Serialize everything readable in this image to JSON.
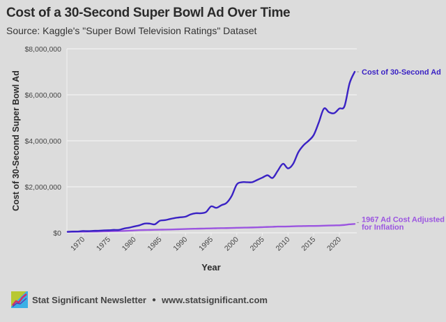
{
  "header": {
    "title": "Cost of a 30-Second Super Bowl Ad Over Time",
    "subtitle": "Source: Kaggle's \"Super Bowl Television Ratings\" Dataset"
  },
  "footer": {
    "brand": "Stat Significant Newsletter",
    "separator": "●",
    "url": "www.statsignificant.com"
  },
  "colors": {
    "background": "#dcdcdc",
    "cost_line": "#3a22c4",
    "inflation_line": "#9b55e0",
    "grid": "#f2f2f2"
  },
  "chart_data": {
    "type": "line",
    "title": "Cost of a 30-Second Super Bowl Ad Over Time",
    "xlabel": "Year",
    "ylabel": "Cost of 30-Second Super Bowl Ad",
    "xlim": [
      1967,
      2023
    ],
    "ylim": [
      0,
      8000000
    ],
    "x_ticks": [
      1970,
      1975,
      1980,
      1985,
      1990,
      1995,
      2000,
      2005,
      2010,
      2015,
      2020
    ],
    "y_ticks": [
      0,
      2000000,
      4000000,
      6000000,
      8000000
    ],
    "y_tick_labels": [
      "$0",
      "$2,000,000",
      "$4,000,000",
      "$6,000,000",
      "$8,000,000"
    ],
    "grid": "horizontal",
    "legend": "direct-labels-right",
    "x": [
      1967,
      1968,
      1969,
      1970,
      1971,
      1972,
      1973,
      1974,
      1975,
      1976,
      1977,
      1978,
      1979,
      1980,
      1981,
      1982,
      1983,
      1984,
      1985,
      1986,
      1987,
      1988,
      1989,
      1990,
      1991,
      1992,
      1993,
      1994,
      1995,
      1996,
      1997,
      1998,
      1999,
      2000,
      2001,
      2002,
      2003,
      2004,
      2005,
      2006,
      2007,
      2008,
      2009,
      2010,
      2011,
      2012,
      2013,
      2014,
      2015,
      2016,
      2017,
      2018,
      2019,
      2020,
      2021,
      2022,
      2023
    ],
    "series": [
      {
        "name": "Cost of 30-Second Ad",
        "label": "Cost of 30-Second Ad",
        "values": [
          42000,
          54000,
          55000,
          78000,
          72000,
          86000,
          88000,
          103000,
          110000,
          125000,
          125000,
          185000,
          222000,
          275000,
          324000,
          400000,
          400000,
          368000,
          525000,
          550000,
          600000,
          645000,
          675000,
          700000,
          800000,
          850000,
          850000,
          900000,
          1150000,
          1085000,
          1200000,
          1300000,
          1600000,
          2100000,
          2200000,
          2200000,
          2200000,
          2300000,
          2400000,
          2500000,
          2385000,
          2700000,
          3000000,
          2800000,
          3000000,
          3500000,
          3800000,
          4000000,
          4250000,
          4800000,
          5400000,
          5240000,
          5200000,
          5400000,
          5500000,
          6500000,
          7000000
        ]
      },
      {
        "name": "1967 Ad Cost Adjusted for Inflation",
        "label": [
          "1967 Ad Cost Adjusted",
          "for Inflation"
        ],
        "values": [
          42000,
          43800,
          46100,
          48800,
          51000,
          52600,
          55900,
          62000,
          67700,
          71600,
          76200,
          82000,
          91300,
          103600,
          114300,
          121400,
          125300,
          130700,
          135300,
          137900,
          142900,
          148800,
          156000,
          164400,
          171400,
          176600,
          181800,
          186600,
          191800,
          197200,
          201800,
          204900,
          209500,
          216500,
          222700,
          226200,
          231300,
          237500,
          245600,
          253500,
          260700,
          270700,
          269800,
          274200,
          282900,
          288700,
          292900,
          297600,
          298000,
          301800,
          308200,
          315700,
          321400,
          325400,
          340700,
          368000,
          383200
        ]
      }
    ]
  }
}
